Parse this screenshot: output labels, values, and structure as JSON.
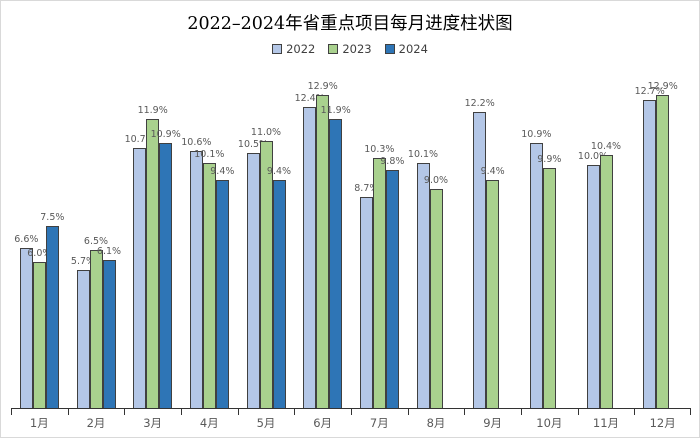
{
  "chart_data": {
    "type": "bar",
    "title": "2022–2024年省重点项目每月进度柱状图",
    "categories": [
      "1月",
      "2月",
      "3月",
      "4月",
      "5月",
      "6月",
      "7月",
      "8月",
      "9月",
      "10月",
      "11月",
      "12月"
    ],
    "series": [
      {
        "name": "2022",
        "color": "#b4c7e7",
        "values": [
          6.6,
          5.7,
          10.7,
          10.6,
          10.5,
          12.4,
          8.7,
          10.1,
          12.2,
          10.9,
          10.0,
          12.7
        ]
      },
      {
        "name": "2023",
        "color": "#a9d18e",
        "values": [
          6.0,
          6.5,
          11.9,
          10.1,
          11.0,
          12.9,
          10.3,
          9.0,
          9.4,
          9.9,
          10.4,
          12.9
        ]
      },
      {
        "name": "2024",
        "color": "#2e75b6",
        "values": [
          7.5,
          6.1,
          10.9,
          9.4,
          9.4,
          11.9,
          9.8,
          null,
          null,
          null,
          null,
          null
        ]
      }
    ],
    "data_label_suffix": "%",
    "data_labels": true,
    "legend_position": "top",
    "grid": false,
    "ylim": [
      0,
      14
    ],
    "colors": {
      "bar_outline": "#404040",
      "data_label": "#595959",
      "axis_line": "#333333",
      "axis_tick_label": "#595959",
      "title": "#000000",
      "frame_border": "#d9d9d9",
      "background": "#ffffff"
    }
  }
}
